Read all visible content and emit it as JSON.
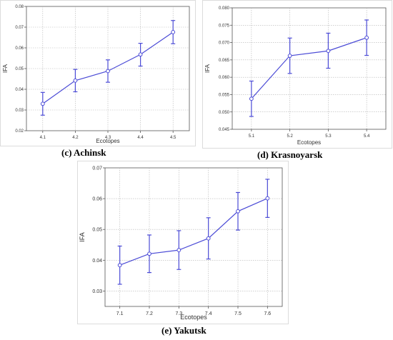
{
  "colors": {
    "series": "#4b4bd6",
    "grid": "#b4b4b4",
    "axis": "#555555",
    "frame": "#dcdcdc"
  },
  "captions": [
    "(c) Achinsk",
    "(d) Krasnoyarsk",
    "(e) Yakutsk"
  ],
  "chart_data": [
    {
      "type": "line",
      "caption": "(c) Achinsk",
      "xlabel": "Ecotopes",
      "ylabel": "IFA",
      "categories": [
        "4.1",
        "4.2",
        "4.3",
        "4.4",
        "4.5"
      ],
      "values": [
        0.033,
        0.0442,
        0.0488,
        0.0568,
        0.0676
      ],
      "error_low": [
        0.0275,
        0.0388,
        0.0434,
        0.0512,
        0.062
      ],
      "error_high": [
        0.0385,
        0.0496,
        0.0542,
        0.0622,
        0.0732
      ],
      "ylim": [
        0.02,
        0.08
      ],
      "yticks": [
        "0.02",
        "0.03",
        "0.04",
        "0.05",
        "0.06",
        "0.07",
        "0.08"
      ],
      "grid": true,
      "marker": "open-circle",
      "error_bars": true
    },
    {
      "type": "line",
      "caption": "(d) Krasnoyarsk",
      "xlabel": "Ecotopes",
      "ylabel": "IFA",
      "categories": [
        "5.1",
        "5.2",
        "5.3",
        "5.4"
      ],
      "values": [
        0.0538,
        0.0662,
        0.0676,
        0.0714
      ],
      "error_low": [
        0.0487,
        0.0611,
        0.0626,
        0.0663
      ],
      "error_high": [
        0.0589,
        0.0713,
        0.0727,
        0.0765
      ],
      "ylim": [
        0.045,
        0.08
      ],
      "yticks": [
        "0.045",
        "0.050",
        "0.055",
        "0.060",
        "0.065",
        "0.070",
        "0.075",
        "0.080"
      ],
      "grid": true,
      "marker": "open-circle",
      "error_bars": true
    },
    {
      "type": "line",
      "caption": "(e) Yakutsk",
      "xlabel": "Ecotopes",
      "ylabel": "IFA",
      "categories": [
        "7.1",
        "7.2",
        "7.3",
        "7.4",
        "7.5",
        "7.6"
      ],
      "values": [
        0.0384,
        0.0421,
        0.0433,
        0.0471,
        0.0559,
        0.0601
      ],
      "error_low": [
        0.0322,
        0.036,
        0.037,
        0.0404,
        0.0498,
        0.0539
      ],
      "error_high": [
        0.0446,
        0.0482,
        0.0496,
        0.0538,
        0.062,
        0.0663
      ],
      "ylim": [
        0.025,
        0.07
      ],
      "yticks": [
        "0.03",
        "0.04",
        "0.05",
        "0.06",
        "0.07"
      ],
      "ytick_values": [
        0.03,
        0.04,
        0.05,
        0.06,
        0.07
      ],
      "grid": true,
      "marker": "open-circle",
      "error_bars": true
    }
  ]
}
